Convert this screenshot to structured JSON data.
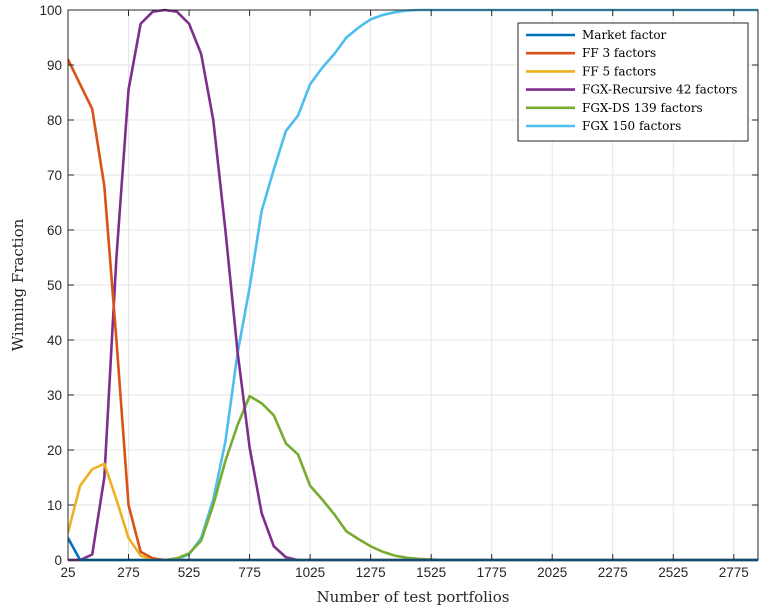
{
  "chart_data": {
    "type": "line",
    "xlabel": "Number of test portfolios",
    "ylabel": "Winning Fraction",
    "xlim": [
      25,
      2875
    ],
    "ylim": [
      0,
      100
    ],
    "x_ticks": [
      25,
      275,
      525,
      775,
      1025,
      1275,
      1525,
      1775,
      2025,
      2275,
      2525,
      2775
    ],
    "y_ticks": [
      0,
      10,
      20,
      30,
      40,
      50,
      60,
      70,
      80,
      90,
      100
    ],
    "grid": true,
    "legend_position": "top-right",
    "series": [
      {
        "name": "Market factor",
        "color": "#0072BD",
        "x": [
          25,
          75,
          125,
          175,
          225,
          275,
          325,
          375,
          425,
          2875
        ],
        "y": [
          4,
          0,
          0,
          0,
          0,
          0,
          0,
          0,
          0,
          0
        ]
      },
      {
        "name": "FF 3 factors",
        "color": "#D95319",
        "x": [
          25,
          75,
          125,
          175,
          225,
          275,
          325,
          375,
          425,
          475,
          525,
          2875
        ],
        "y": [
          91,
          86.5,
          82,
          68,
          40,
          10,
          1.5,
          0.3,
          0,
          0,
          0,
          0
        ]
      },
      {
        "name": "FF 5 factors",
        "color": "#EDB120",
        "x": [
          25,
          75,
          125,
          175,
          225,
          275,
          325,
          375,
          425,
          475,
          2875
        ],
        "y": [
          5,
          13.5,
          16.5,
          17.5,
          11,
          4,
          0.8,
          0.1,
          0,
          0,
          0
        ],
        "note_hidden": ""
      },
      {
        "name": "FGX-Recursive 42 factors",
        "color": "#7E2F8E",
        "x": [
          25,
          75,
          125,
          175,
          225,
          275,
          325,
          375,
          425,
          475,
          525,
          575,
          625,
          675,
          725,
          775,
          825,
          875,
          925,
          975,
          1025,
          2875
        ],
        "y": [
          0,
          0,
          1,
          15,
          55,
          85.5,
          97.5,
          99.7,
          100,
          99.7,
          97.5,
          92,
          80,
          60,
          38,
          20.5,
          8.5,
          2.5,
          0.5,
          0,
          0,
          0
        ]
      },
      {
        "name": "FGX-DS 139 factors",
        "color": "#77AC30",
        "x": [
          25,
          425,
          475,
          525,
          575,
          625,
          675,
          725,
          775,
          825,
          875,
          925,
          975,
          1025,
          1075,
          1125,
          1175,
          1225,
          1275,
          1325,
          1375,
          1425,
          1475,
          1525,
          1575,
          2875
        ],
        "y": [
          0,
          0,
          0.3,
          1.2,
          3.5,
          10,
          18,
          24.5,
          29.8,
          28.5,
          26.3,
          21.2,
          19.2,
          13.5,
          11,
          8.3,
          5.2,
          3.8,
          2.5,
          1.5,
          0.8,
          0.4,
          0.2,
          0.1,
          0,
          0
        ]
      },
      {
        "name": "FGX 150 factors",
        "color": "#4DBEEE",
        "x": [
          25,
          425,
          475,
          525,
          575,
          625,
          675,
          725,
          775,
          825,
          875,
          925,
          975,
          1025,
          1075,
          1125,
          1175,
          1225,
          1275,
          1325,
          1375,
          1425,
          1475,
          1525,
          1575,
          2875
        ],
        "y": [
          0,
          0,
          0.2,
          1,
          4,
          11,
          21.5,
          37.5,
          49.5,
          63.5,
          71,
          78,
          80.8,
          86.5,
          89.5,
          92,
          95,
          96.8,
          98.3,
          99.1,
          99.6,
          99.9,
          100,
          100,
          100,
          100
        ]
      }
    ]
  }
}
